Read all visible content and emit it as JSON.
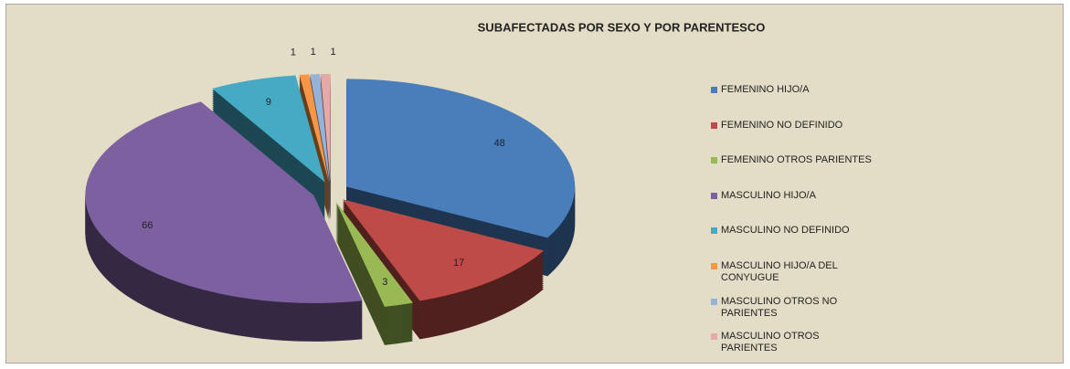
{
  "chart_data": {
    "type": "pie",
    "title": "SUBAFECTADAS POR SEXO  Y  POR PARENTESCO",
    "categories": [
      "FEMENINO HIJO/A",
      "FEMENINO NO DEFINIDO",
      "FEMENINO OTROS PARIENTES",
      "MASCULINO HIJO/A",
      "MASCULINO NO DEFINIDO",
      "MASCULINO HIJO/A DEL CONYUGUE",
      "MASCULINO OTROS NO PARIENTES",
      "MASCULINO OTROS PARIENTES"
    ],
    "values": [
      48,
      17,
      3,
      66,
      9,
      1,
      1,
      1
    ],
    "colors": [
      "#4a7ebb",
      "#be4b48",
      "#98b954",
      "#7d60a0",
      "#46aac5",
      "#f79646",
      "#95b3d7",
      "#e6a9a8"
    ],
    "legend": "right"
  }
}
